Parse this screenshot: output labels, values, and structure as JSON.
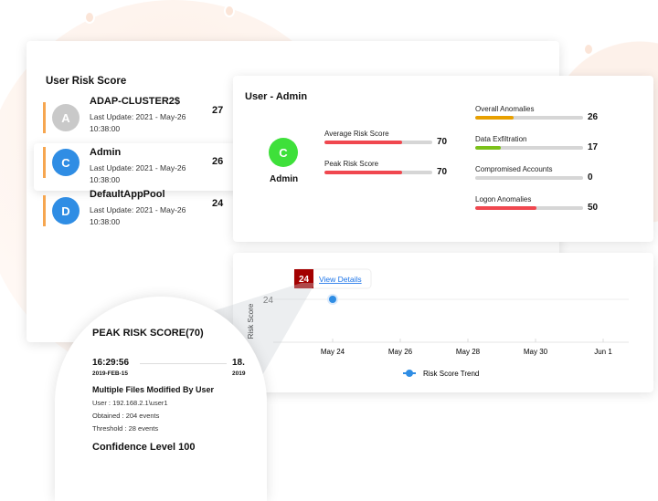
{
  "risk_list": {
    "title": "User Risk Score",
    "items": [
      {
        "initial": "A",
        "name": "ADAP-CLUSTER2$",
        "updated": "Last Update: 2021 - May-26 10:38:00",
        "score": "27",
        "avatar_color": "#c9c9c9"
      },
      {
        "initial": "C",
        "name": "Admin",
        "updated": "Last Update: 2021 - May-26 10:38:00",
        "score": "26",
        "avatar_color": "#2f8de4"
      },
      {
        "initial": "D",
        "name": "DefaultAppPool",
        "updated": "Last Update: 2021 - May-26 10:38:00",
        "score": "24",
        "avatar_color": "#2f8de4"
      }
    ]
  },
  "user_detail": {
    "title": "User - Admin",
    "initial": "C",
    "name": "Admin",
    "avatar_color": "#3ee03a",
    "scores": [
      {
        "label": "Average Risk Score",
        "value": "70",
        "fill_pct": 72,
        "color": "#f0474f"
      },
      {
        "label": "Peak Risk Score",
        "value": "70",
        "fill_pct": 72,
        "color": "#f0474f"
      }
    ],
    "anomalies": [
      {
        "label": "Overall Anomalies",
        "value": "26",
        "fill_pct": 36,
        "color": "#e8a000"
      },
      {
        "label": "Data Exfiltration",
        "value": "17",
        "fill_pct": 24,
        "color": "#7cc11a"
      },
      {
        "label": "Compromised Accounts",
        "value": "0",
        "fill_pct": 0,
        "color": "#d6d6d6"
      },
      {
        "label": "Logon Anomalies",
        "value": "50",
        "fill_pct": 57,
        "color": "#f0474f"
      }
    ]
  },
  "chart_data": {
    "type": "line",
    "ylabel": "Risk Score",
    "x_ticks": [
      "May 24",
      "May 26",
      "May 28",
      "May 30",
      "Jun 1"
    ],
    "y_ticks": [
      "24"
    ],
    "series": [
      {
        "name": "Risk Score Trend",
        "points": [
          {
            "x": "May 24",
            "y": 24
          }
        ],
        "color": "#2f8de4"
      }
    ],
    "tooltip": {
      "value": "24",
      "link": "View Details"
    },
    "legend": "bottom"
  },
  "peak": {
    "title": "PEAK RISK SCORE(70)",
    "time1": "16:29:56",
    "date1": "2019-FEB-15",
    "time2": "18.",
    "date2": "2019",
    "event": "Multiple Files Modified By User",
    "user": "User : 192.168.2.1\\user1",
    "obtained": "Obtained : 204 events",
    "threshold": "Threshold : 28 events",
    "confidence": "Confidence Level 100"
  }
}
